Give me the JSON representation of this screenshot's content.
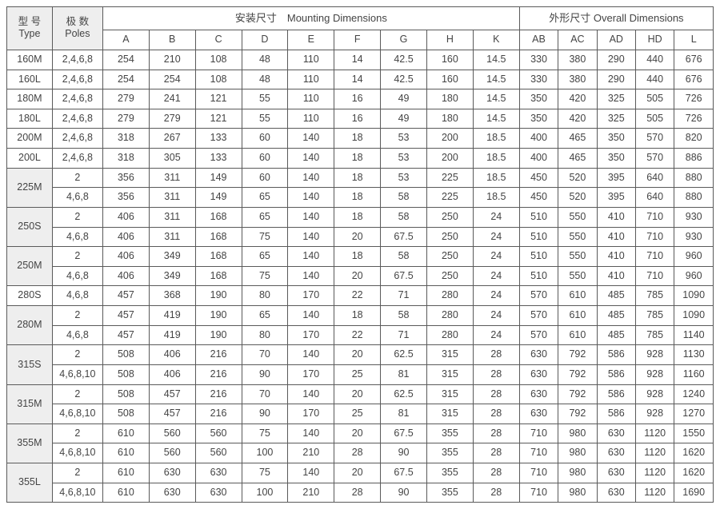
{
  "headers": {
    "type_cn": "型 号",
    "type_en": "Type",
    "poles_cn": "极 数",
    "poles_en": "Poles",
    "mounting": "安装尺寸　Mounting Dimensions",
    "overall": "外形尺寸 Overall Dimensions",
    "mounting_cols": [
      "A",
      "B",
      "C",
      "D",
      "E",
      "F",
      "G",
      "H",
      "K"
    ],
    "overall_cols": [
      "AB",
      "AC",
      "AD",
      "HD",
      "L"
    ]
  },
  "rows": [
    {
      "type": "160M",
      "type_span": 1,
      "alt": false,
      "poles": "2,4,6,8",
      "v": [
        "254",
        "210",
        "108",
        "48",
        "110",
        "14",
        "42.5",
        "160",
        "14.5",
        "330",
        "380",
        "290",
        "440",
        "676"
      ]
    },
    {
      "type": "160L",
      "type_span": 1,
      "alt": false,
      "poles": "2,4,6,8",
      "v": [
        "254",
        "254",
        "108",
        "48",
        "110",
        "14",
        "42.5",
        "160",
        "14.5",
        "330",
        "380",
        "290",
        "440",
        "676"
      ]
    },
    {
      "type": "180M",
      "type_span": 1,
      "alt": false,
      "poles": "2,4,6,8",
      "v": [
        "279",
        "241",
        "121",
        "55",
        "110",
        "16",
        "49",
        "180",
        "14.5",
        "350",
        "420",
        "325",
        "505",
        "726"
      ]
    },
    {
      "type": "180L",
      "type_span": 1,
      "alt": false,
      "poles": "2,4,6,8",
      "v": [
        "279",
        "279",
        "121",
        "55",
        "110",
        "16",
        "49",
        "180",
        "14.5",
        "350",
        "420",
        "325",
        "505",
        "726"
      ]
    },
    {
      "type": "200M",
      "type_span": 1,
      "alt": false,
      "poles": "2,4,6,8",
      "v": [
        "318",
        "267",
        "133",
        "60",
        "140",
        "18",
        "53",
        "200",
        "18.5",
        "400",
        "465",
        "350",
        "570",
        "820"
      ]
    },
    {
      "type": "200L",
      "type_span": 1,
      "alt": false,
      "poles": "2,4,6,8",
      "v": [
        "318",
        "305",
        "133",
        "60",
        "140",
        "18",
        "53",
        "200",
        "18.5",
        "400",
        "465",
        "350",
        "570",
        "886"
      ]
    },
    {
      "type": "225M",
      "type_span": 2,
      "alt": true,
      "poles": "2",
      "v": [
        "356",
        "311",
        "149",
        "60",
        "140",
        "18",
        "53",
        "225",
        "18.5",
        "450",
        "520",
        "395",
        "640",
        "880"
      ]
    },
    {
      "poles": "4,6,8",
      "v": [
        "356",
        "311",
        "149",
        "65",
        "140",
        "18",
        "58",
        "225",
        "18.5",
        "450",
        "520",
        "395",
        "640",
        "880"
      ]
    },
    {
      "type": "250S",
      "type_span": 2,
      "alt": true,
      "poles": "2",
      "v": [
        "406",
        "311",
        "168",
        "65",
        "140",
        "18",
        "58",
        "250",
        "24",
        "510",
        "550",
        "410",
        "710",
        "930"
      ]
    },
    {
      "poles": "4,6,8",
      "v": [
        "406",
        "311",
        "168",
        "75",
        "140",
        "20",
        "67.5",
        "250",
        "24",
        "510",
        "550",
        "410",
        "710",
        "930"
      ]
    },
    {
      "type": "250M",
      "type_span": 2,
      "alt": true,
      "poles": "2",
      "v": [
        "406",
        "349",
        "168",
        "65",
        "140",
        "18",
        "58",
        "250",
        "24",
        "510",
        "550",
        "410",
        "710",
        "960"
      ]
    },
    {
      "poles": "4,6,8",
      "v": [
        "406",
        "349",
        "168",
        "75",
        "140",
        "20",
        "67.5",
        "250",
        "24",
        "510",
        "550",
        "410",
        "710",
        "960"
      ]
    },
    {
      "type": "280S",
      "type_span": 1,
      "alt": false,
      "poles": "4,6,8",
      "v": [
        "457",
        "368",
        "190",
        "80",
        "170",
        "22",
        "71",
        "280",
        "24",
        "570",
        "610",
        "485",
        "785",
        "1090"
      ]
    },
    {
      "type": "280M",
      "type_span": 2,
      "alt": true,
      "poles": "2",
      "v": [
        "457",
        "419",
        "190",
        "65",
        "140",
        "18",
        "58",
        "280",
        "24",
        "570",
        "610",
        "485",
        "785",
        "1090"
      ]
    },
    {
      "poles": "4,6,8",
      "v": [
        "457",
        "419",
        "190",
        "80",
        "170",
        "22",
        "71",
        "280",
        "24",
        "570",
        "610",
        "485",
        "785",
        "1140"
      ]
    },
    {
      "type": "315S",
      "type_span": 2,
      "alt": true,
      "poles": "2",
      "v": [
        "508",
        "406",
        "216",
        "70",
        "140",
        "20",
        "62.5",
        "315",
        "28",
        "630",
        "792",
        "586",
        "928",
        "1130"
      ]
    },
    {
      "poles": "4,6,8,10",
      "v": [
        "508",
        "406",
        "216",
        "90",
        "170",
        "25",
        "81",
        "315",
        "28",
        "630",
        "792",
        "586",
        "928",
        "1160"
      ]
    },
    {
      "type": "315M",
      "type_span": 2,
      "alt": true,
      "poles": "2",
      "v": [
        "508",
        "457",
        "216",
        "70",
        "140",
        "20",
        "62.5",
        "315",
        "28",
        "630",
        "792",
        "586",
        "928",
        "1240"
      ]
    },
    {
      "poles": "4,6,8,10",
      "v": [
        "508",
        "457",
        "216",
        "90",
        "170",
        "25",
        "81",
        "315",
        "28",
        "630",
        "792",
        "586",
        "928",
        "1270"
      ]
    },
    {
      "type": "355M",
      "type_span": 2,
      "alt": true,
      "poles": "2",
      "v": [
        "610",
        "560",
        "560",
        "75",
        "140",
        "20",
        "67.5",
        "355",
        "28",
        "710",
        "980",
        "630",
        "1120",
        "1550"
      ]
    },
    {
      "poles": "4,6,8,10",
      "v": [
        "610",
        "560",
        "560",
        "100",
        "210",
        "28",
        "90",
        "355",
        "28",
        "710",
        "980",
        "630",
        "1120",
        "1620"
      ]
    },
    {
      "type": "355L",
      "type_span": 2,
      "alt": true,
      "poles": "2",
      "v": [
        "610",
        "630",
        "630",
        "75",
        "140",
        "20",
        "67.5",
        "355",
        "28",
        "710",
        "980",
        "630",
        "1120",
        "1620"
      ]
    },
    {
      "poles": "4,6,8,10",
      "v": [
        "610",
        "630",
        "630",
        "100",
        "210",
        "28",
        "90",
        "355",
        "28",
        "710",
        "980",
        "630",
        "1120",
        "1690"
      ]
    }
  ]
}
